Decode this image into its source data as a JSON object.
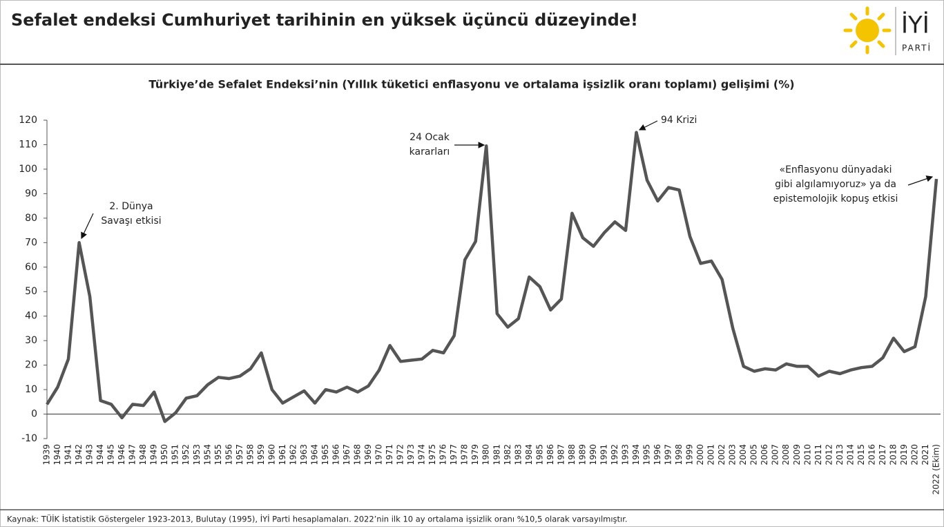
{
  "header": {
    "title": "Sefalet endeksi Cumhuriyet tarihinin en yüksek üçüncü düzeyinde!",
    "logo": {
      "name": "İYİ",
      "sub": "PARTİ"
    }
  },
  "chart_data": {
    "type": "line",
    "title": "Türkiye’de Sefalet Endeksi’nin (Yıllık tüketici enflasyonu ve ortalama işsizlik oranı toplamı) gelişimi (%)",
    "categories": [
      "1939",
      "1940",
      "1941",
      "1942",
      "1943",
      "1944",
      "1945",
      "1946",
      "1947",
      "1948",
      "1949",
      "1950",
      "1951",
      "1952",
      "1953",
      "1954",
      "1955",
      "1956",
      "1957",
      "1958",
      "1959",
      "1960",
      "1961",
      "1962",
      "1963",
      "1964",
      "1965",
      "1966",
      "1967",
      "1968",
      "1969",
      "1970",
      "1971",
      "1972",
      "1973",
      "1974",
      "1975",
      "1976",
      "1977",
      "1978",
      "1979",
      "1980",
      "1981",
      "1982",
      "1983",
      "1984",
      "1985",
      "1986",
      "1987",
      "1988",
      "1989",
      "1990",
      "1991",
      "1992",
      "1993",
      "1994",
      "1995",
      "1996",
      "1997",
      "1998",
      "1999",
      "2000",
      "2001",
      "2002",
      "2003",
      "2004",
      "2005",
      "2006",
      "2007",
      "2008",
      "2009",
      "2010",
      "2011",
      "2012",
      "2013",
      "2014",
      "2015",
      "2016",
      "2017",
      "2018",
      "2019",
      "2020",
      "2021",
      "2022 (Ekim)"
    ],
    "values": [
      4,
      11,
      22.5,
      70,
      48,
      5.5,
      4,
      -1.5,
      4,
      3.5,
      9,
      -3,
      0.5,
      6.5,
      7.5,
      12,
      15,
      14.5,
      15.5,
      18.5,
      25,
      10,
      4.5,
      7,
      9.5,
      4.5,
      10,
      9,
      11,
      9,
      11.5,
      18,
      28,
      21.5,
      22,
      22.5,
      26,
      25,
      32,
      63,
      70.5,
      109.5,
      41,
      35.5,
      39,
      56,
      52,
      42.5,
      47,
      82,
      72,
      68.5,
      74,
      78.5,
      75,
      115,
      95.5,
      87,
      92.5,
      91.5,
      72.5,
      61.5,
      62.5,
      55,
      35,
      19.5,
      17.5,
      18.5,
      18,
      20.5,
      19.5,
      19.5,
      15.5,
      17.5,
      16.5,
      18,
      19,
      19.5,
      23,
      31,
      25.5,
      27.5,
      48,
      96
    ],
    "color": "#555555",
    "ylim": [
      -10,
      120
    ],
    "yticks": [
      -10,
      0,
      10,
      20,
      30,
      40,
      50,
      60,
      70,
      80,
      90,
      100,
      110,
      120
    ],
    "annotations": [
      {
        "lines": [
          "2. Dünya",
          "Savaşı etkisi"
        ]
      },
      {
        "lines": [
          "24 Ocak",
          "kararları"
        ]
      },
      {
        "lines": [
          "94 Krizi"
        ]
      },
      {
        "lines": [
          "«Enflasyonu dünyadaki",
          "gibi algılamıyoruz» ya da",
          "epistemolojik kopuş etkisi"
        ]
      }
    ]
  },
  "footer": {
    "source": "Kaynak: TÜİK İstatistik Göstergeler 1923-2013, Bulutay (1995), İYİ Parti hesaplamaları. 2022’nin ilk 10 ay ortalama işsizlik oranı %10,5 olarak varsayılmıştır."
  }
}
